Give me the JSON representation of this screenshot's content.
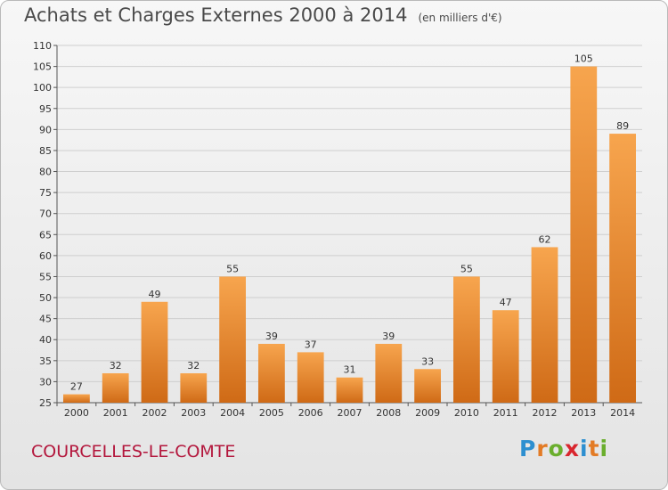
{
  "header": {
    "title": "Achats et Charges Externes 2000 à 2014",
    "unit": "(en milliers d'€)"
  },
  "footer": {
    "location": "COURCELLES-LE-COMTE",
    "logo_text": "Proxiti"
  },
  "colors": {
    "bar_light": "#f7a54e",
    "bar_dark": "#cf6a16",
    "grid": "#cfcfcf",
    "axis": "#555555",
    "label": "#333333",
    "location": "#b3163c",
    "logo_letters": [
      "#2d8fd0",
      "#e37b25",
      "#6aae2d",
      "#d9262e",
      "#2d8fd0",
      "#e37b25",
      "#6aae2d"
    ]
  },
  "chart_data": {
    "type": "bar",
    "title": "Achats et Charges Externes 2000 à 2014",
    "subtitle": "(en milliers d'€)",
    "categories": [
      "2000",
      "2001",
      "2002",
      "2003",
      "2004",
      "2005",
      "2006",
      "2007",
      "2008",
      "2009",
      "2010",
      "2011",
      "2012",
      "2013",
      "2014"
    ],
    "values": [
      27,
      32,
      49,
      32,
      55,
      39,
      37,
      31,
      39,
      33,
      55,
      47,
      62,
      105,
      89
    ],
    "ylim": [
      25,
      110
    ],
    "yticks": [
      25,
      30,
      35,
      40,
      45,
      50,
      55,
      60,
      65,
      70,
      75,
      80,
      85,
      90,
      95,
      100,
      105,
      110
    ],
    "grid": true,
    "legend": "none"
  }
}
